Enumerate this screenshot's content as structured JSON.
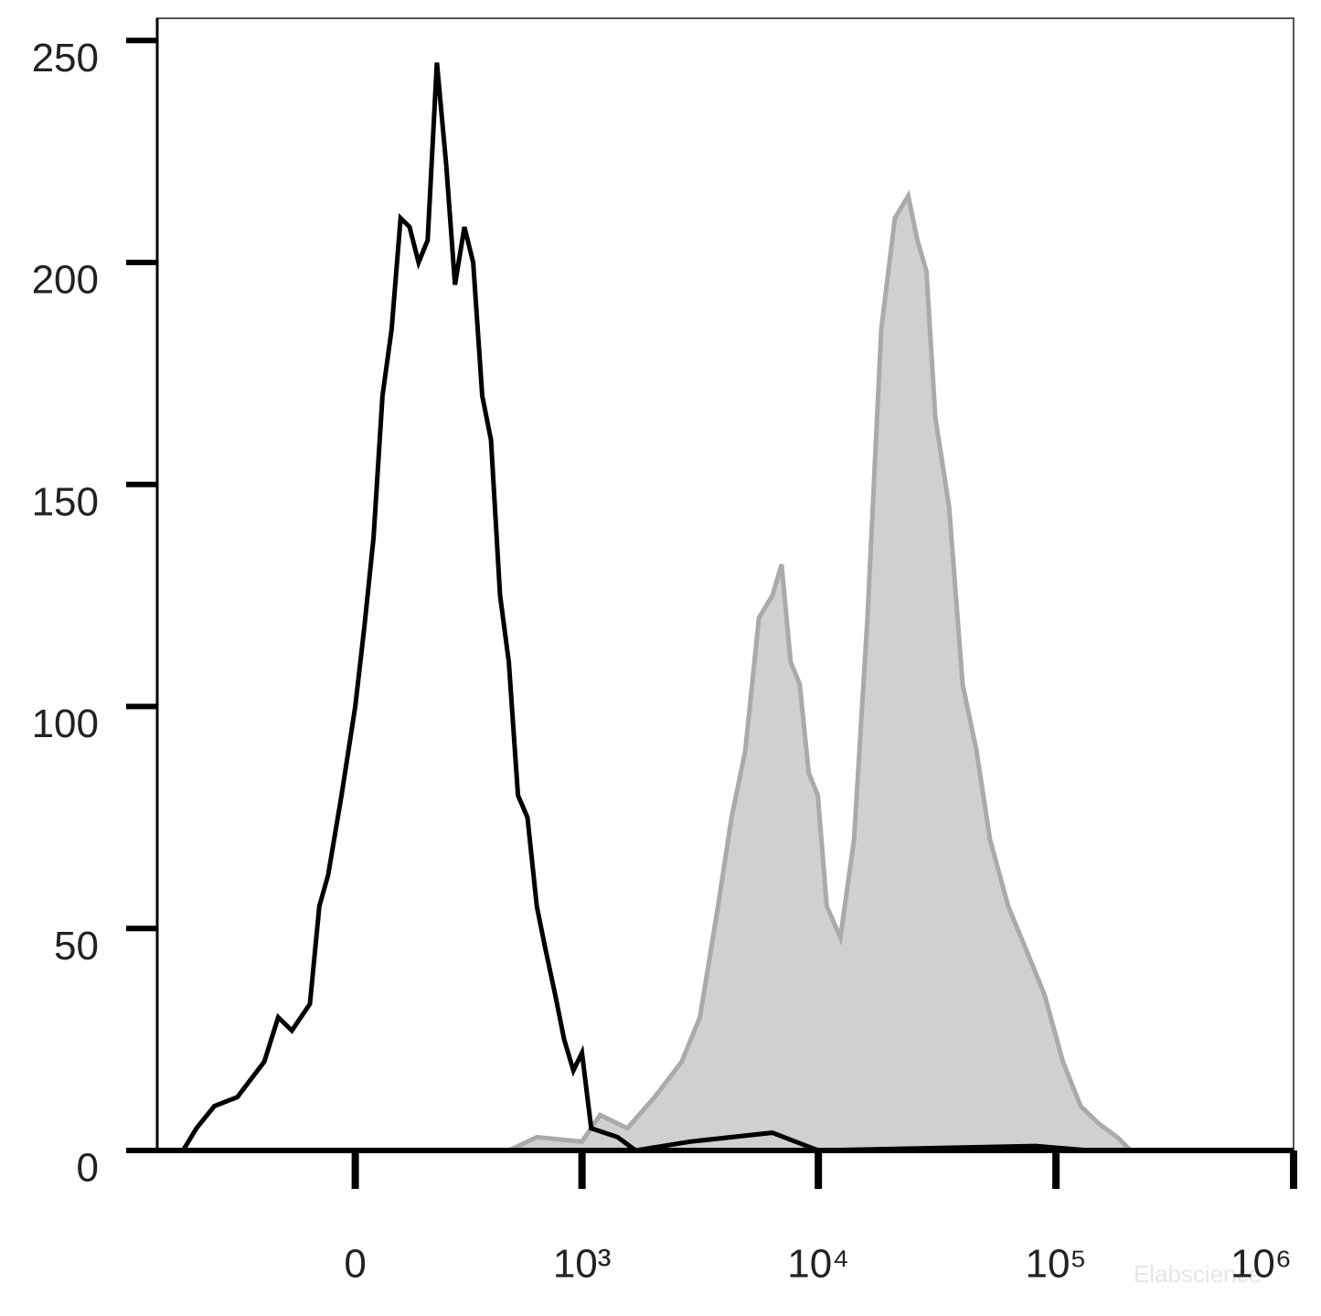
{
  "chart_data": {
    "type": "histogram-overlay",
    "xscale": "biexponential",
    "xlim": [
      -750,
      1000000
    ],
    "ylim": [
      0,
      255
    ],
    "xticks": [
      0,
      {
        "value": 1000,
        "label": "10³"
      },
      {
        "value": 10000,
        "label": "10⁴"
      },
      {
        "value": 100000,
        "label": "10⁵"
      },
      {
        "value": 1000000,
        "label": "10⁶"
      }
    ],
    "yticks": [
      0,
      50,
      100,
      150,
      200,
      250
    ],
    "watermark": "Elabscience",
    "series": [
      {
        "style": "area",
        "color": "#aaaaaa",
        "fill": "#d0d0d0",
        "x": [
          -750,
          473,
          634,
          1000,
          1197,
          1562,
          2040,
          2655,
          3170,
          3780,
          4310,
          4920,
          5620,
          6410,
          7000,
          7650,
          8350,
          9110,
          9950,
          10850,
          12380,
          14130,
          16100,
          18400,
          21000,
          23900,
          26100,
          28500,
          31100,
          35500,
          40500,
          46300,
          52800,
          63000,
          75200,
          89600,
          107000,
          127000,
          152000,
          181000,
          206000,
          1000000
        ],
        "values": [
          0,
          0,
          3,
          2,
          8,
          5,
          12,
          20,
          30,
          55,
          75,
          90,
          120,
          125,
          132,
          110,
          105,
          85,
          80,
          55,
          48,
          70,
          120,
          185,
          210,
          215,
          205,
          198,
          165,
          145,
          105,
          90,
          70,
          55,
          45,
          35,
          20,
          10,
          6,
          3,
          0,
          0
        ]
      },
      {
        "style": "line",
        "color": "#000000",
        "x": [
          -745,
          -576,
          -500,
          -412,
          -317,
          -225,
          -184,
          -147,
          -102,
          -80,
          -60,
          -30,
          0,
          20,
          40,
          60,
          81,
          102,
          124,
          147,
          171,
          197,
          225,
          253,
          285,
          317,
          352,
          389,
          430,
          473,
          521,
          576,
          634,
          695,
          765,
          837,
          918,
          1000,
          1095,
          1420,
          1695,
          2890,
          6400,
          10000,
          82000,
          138000,
          1000000
        ],
        "values": [
          0,
          0,
          5,
          10,
          12,
          20,
          30,
          27,
          33,
          55,
          62,
          80,
          100,
          118,
          138,
          170,
          185,
          210,
          208,
          200,
          205,
          245,
          222,
          195,
          208,
          200,
          170,
          160,
          125,
          110,
          80,
          75,
          55,
          45,
          35,
          25,
          18,
          22,
          5,
          3,
          0,
          2,
          4,
          0,
          1,
          0,
          0
        ]
      }
    ]
  }
}
